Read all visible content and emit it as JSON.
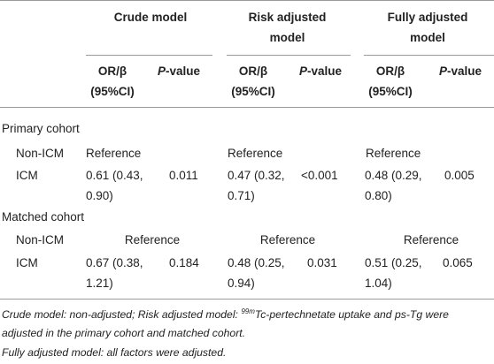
{
  "table": {
    "columns": [
      {
        "title": "Crude model",
        "or_beta": "OR/β",
        "ci": "(95%CI)",
        "p": "P",
        "p_suffix": "-value"
      },
      {
        "title": "Risk adjusted model",
        "or_beta": "OR/β",
        "ci": "(95%CI)",
        "p": "P",
        "p_suffix": "-value"
      },
      {
        "title": "Fully adjusted model",
        "or_beta": "OR/β",
        "ci": "(95%CI)",
        "p": "P",
        "p_suffix": "-value"
      }
    ],
    "sections": [
      {
        "title": "Primary cohort",
        "rows": [
          {
            "label": "Non-ICM",
            "cells": [
              "Reference",
              "Reference",
              "Reference"
            ]
          },
          {
            "label": "ICM",
            "cells": [
              "0.61 (0.43, 0.90)",
              "0.011",
              "0.47 (0.32, 0.71)",
              "<0.001",
              "0.48 (0.29, 0.80)",
              "0.005"
            ]
          }
        ]
      },
      {
        "title": "Matched cohort",
        "rows": [
          {
            "label": "Non-ICM",
            "cells": [
              "Reference",
              "Reference",
              "Reference"
            ]
          },
          {
            "label": "ICM",
            "cells": [
              "0.67 (0.38, 1.21)",
              "0.184",
              "0.48 (0.25, 0.94)",
              "0.031",
              "0.51 (0.25, 1.04)",
              "0.065"
            ]
          }
        ]
      }
    ],
    "footnote": {
      "line1_start": "Crude model: non-adjusted; Risk adjusted model: ",
      "superscript": "99m",
      "line1_end": "Tc-pertechnetate uptake and ps-Tg were adjusted in the primary cohort and matched cohort.",
      "line2": "Fully adjusted model: all factors were adjusted."
    }
  }
}
